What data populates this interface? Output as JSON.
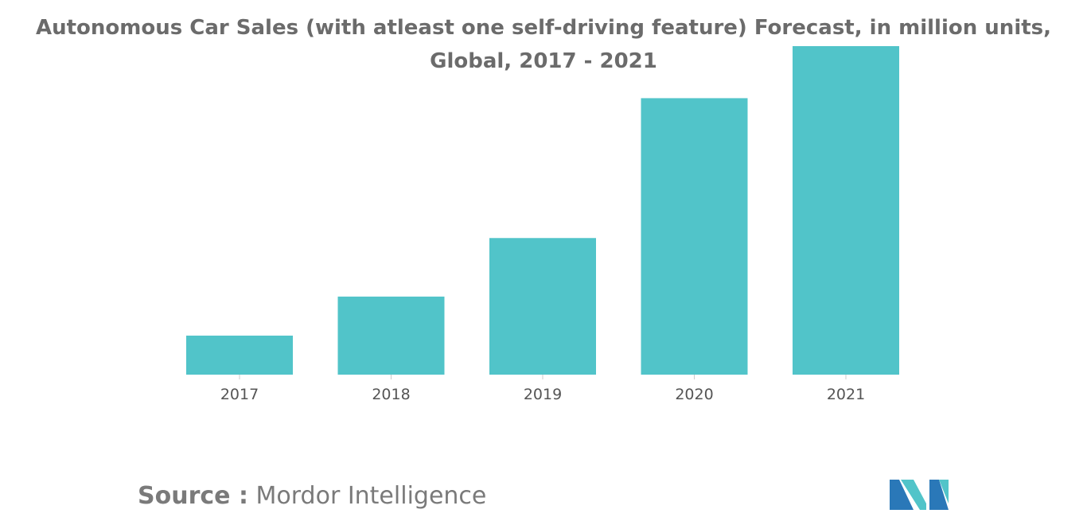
{
  "chart_data": {
    "type": "bar",
    "title_line1": "Autonomous Car Sales (with atleast one self-driving feature) Forecast, in million units,",
    "title_line2": "Global, 2017 - 2021",
    "categories": [
      "2017",
      "2018",
      "2019",
      "2020",
      "2021"
    ],
    "values": [
      1.2,
      2.4,
      4.2,
      8.5,
      10.1
    ],
    "xlabel": "",
    "ylabel": "",
    "ylim": [
      0,
      10.1
    ],
    "grid": false,
    "legend": "none",
    "bar_color": "#51c4c9"
  },
  "source": {
    "label": "Source :",
    "text": "Mordor Intelligence"
  },
  "logo": {
    "icon": "mordor-intelligence-logo",
    "colors": [
      "#2a78b8",
      "#51c4c9"
    ]
  }
}
